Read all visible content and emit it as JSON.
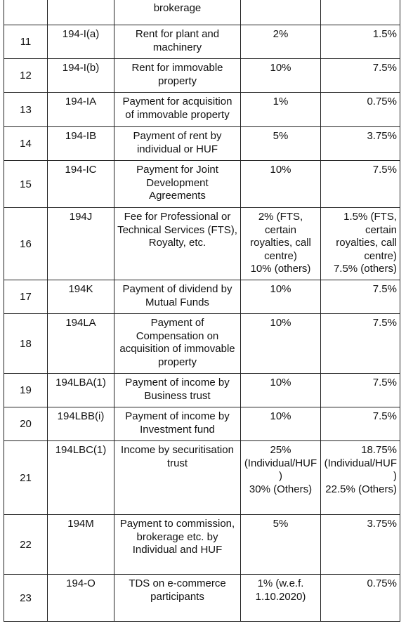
{
  "table": {
    "continuation": "brokerage",
    "rows": [
      [
        11,
        "194-I(a)",
        "Rent for plant and machinery",
        "2%",
        "1.5%"
      ],
      [
        12,
        "194-I(b)",
        "Rent for immovable property",
        "10%",
        "7.5%"
      ],
      [
        13,
        "194-IA",
        "Payment for acquisition of immovable property",
        "1%",
        "0.75%"
      ],
      [
        14,
        "194-IB",
        "Payment of rent by individual or HUF",
        "5%",
        "3.75%"
      ],
      [
        15,
        "194-IC",
        "Payment for Joint Development Agreements",
        "10%",
        "7.5%"
      ],
      [
        16,
        "194J",
        "Fee for Professional or Technical Services (FTS), Royalty, etc.",
        "2% (FTS, certain royalties, call centre)\n10% (others)",
        "1.5% (FTS, certain royalties, call centre)\n7.5% (others)"
      ],
      [
        17,
        "194K",
        "Payment of dividend by Mutual Funds",
        "10%",
        "7.5%"
      ],
      [
        18,
        "194LA",
        "Payment of Compensation on acquisition of immovable property",
        "10%",
        "7.5%"
      ],
      [
        19,
        "194LBA(1)",
        "Payment of income by Business trust",
        "10%",
        "7.5%"
      ],
      [
        20,
        "194LBB(i)",
        "Payment of income by Investment fund",
        "10%",
        "7.5%"
      ],
      [
        21,
        "194LBC(1)",
        "Income by securitisation trust",
        "25% (Individual/HUF)\n30% (Others)",
        "18.75% (Individual/HUF)\n22.5% (Others)"
      ],
      [
        22,
        "194M",
        "Payment to commission, brokerage etc. by Individual and HUF",
        "5%",
        "3.75%"
      ],
      [
        23,
        "194-O",
        "TDS on e-commerce participants",
        "1% (w.e.f. 1.10.2020)",
        "0.75%"
      ]
    ]
  }
}
